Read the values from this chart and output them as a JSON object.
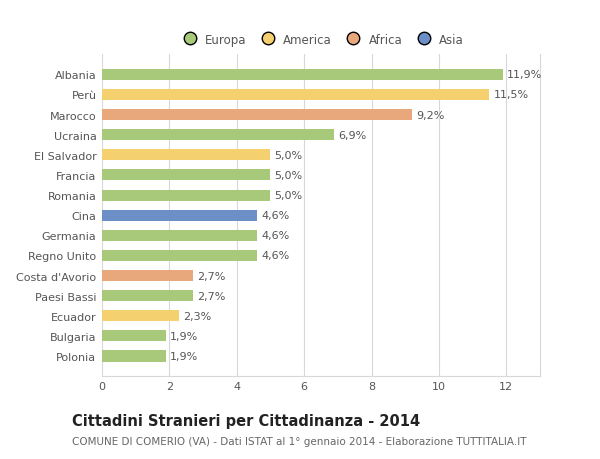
{
  "countries": [
    "Albania",
    "Perù",
    "Marocco",
    "Ucraina",
    "El Salvador",
    "Francia",
    "Romania",
    "Cina",
    "Germania",
    "Regno Unito",
    "Costa d'Avorio",
    "Paesi Bassi",
    "Ecuador",
    "Bulgaria",
    "Polonia"
  ],
  "values": [
    11.9,
    11.5,
    9.2,
    6.9,
    5.0,
    5.0,
    5.0,
    4.6,
    4.6,
    4.6,
    2.7,
    2.7,
    2.3,
    1.9,
    1.9
  ],
  "continents": [
    "Europa",
    "America",
    "Africa",
    "Europa",
    "America",
    "Europa",
    "Europa",
    "Asia",
    "Europa",
    "Europa",
    "Africa",
    "Europa",
    "America",
    "Europa",
    "Europa"
  ],
  "colors": {
    "Europa": "#a8c87a",
    "America": "#f5d06e",
    "Africa": "#e8a87c",
    "Asia": "#6d8fc7"
  },
  "legend_order": [
    "Europa",
    "America",
    "Africa",
    "Asia"
  ],
  "title": "Cittadini Stranieri per Cittadinanza - 2014",
  "subtitle": "COMUNE DI COMERIO (VA) - Dati ISTAT al 1° gennaio 2014 - Elaborazione TUTTITALIA.IT",
  "xlim": [
    0,
    13
  ],
  "xticks": [
    0,
    2,
    4,
    6,
    8,
    10,
    12
  ],
  "bar_height": 0.55,
  "bg_color": "#ffffff",
  "grid_color": "#d8d8d8",
  "title_fontsize": 10.5,
  "subtitle_fontsize": 7.5,
  "label_fontsize": 8,
  "tick_fontsize": 8,
  "legend_fontsize": 8.5
}
